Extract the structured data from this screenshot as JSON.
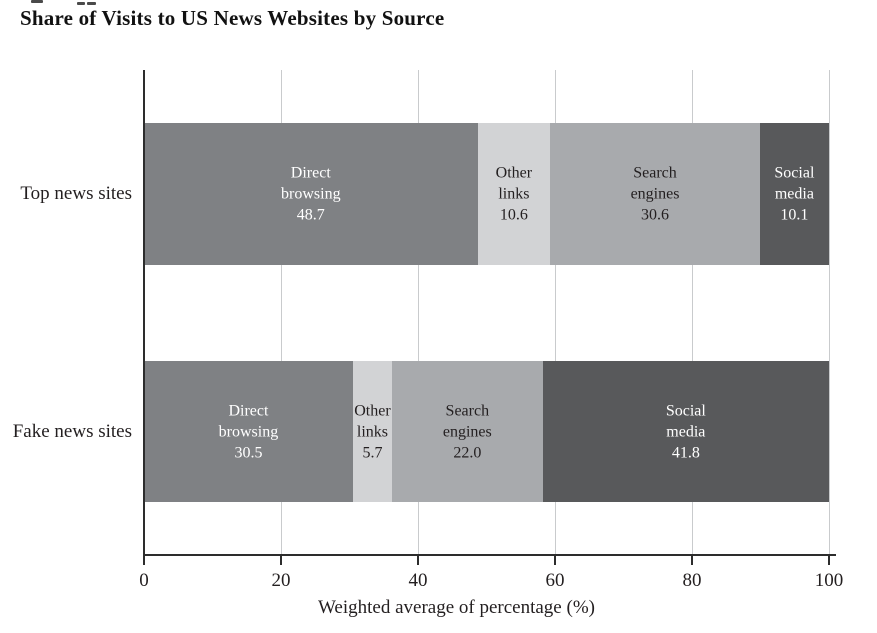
{
  "figure": {
    "title": "Share of Visits to US News Websites by Source"
  },
  "chart_data": {
    "type": "bar",
    "orientation": "horizontal",
    "stacked": true,
    "title": "Share of Visits to US News Websites by Source",
    "categories": [
      "Top news sites",
      "Fake news sites"
    ],
    "series": [
      {
        "name": "Direct browsing",
        "values": [
          48.7,
          30.5
        ],
        "color": "#7f8184",
        "text_color": "#ffffff"
      },
      {
        "name": "Other links",
        "values": [
          10.6,
          5.7
        ],
        "color": "#d2d3d5",
        "text_color": "#231f20"
      },
      {
        "name": "Search engines",
        "values": [
          30.6,
          22.0
        ],
        "color": "#a8aaad",
        "text_color": "#231f20"
      },
      {
        "name": "Social media",
        "values": [
          10.1,
          41.8
        ],
        "color": "#58595b",
        "text_color": "#ffffff"
      }
    ],
    "xlabel": "Weighted average of percentage (%)",
    "x_ticks": [
      0,
      20,
      40,
      60,
      80,
      100
    ],
    "xlim": [
      0,
      100
    ],
    "grid": true,
    "legend_position": "none",
    "value_label_decimals": 1,
    "axis_color": "#2d2d2d",
    "gridline_color": "#c9cbcd",
    "background_color": "#ffffff"
  }
}
